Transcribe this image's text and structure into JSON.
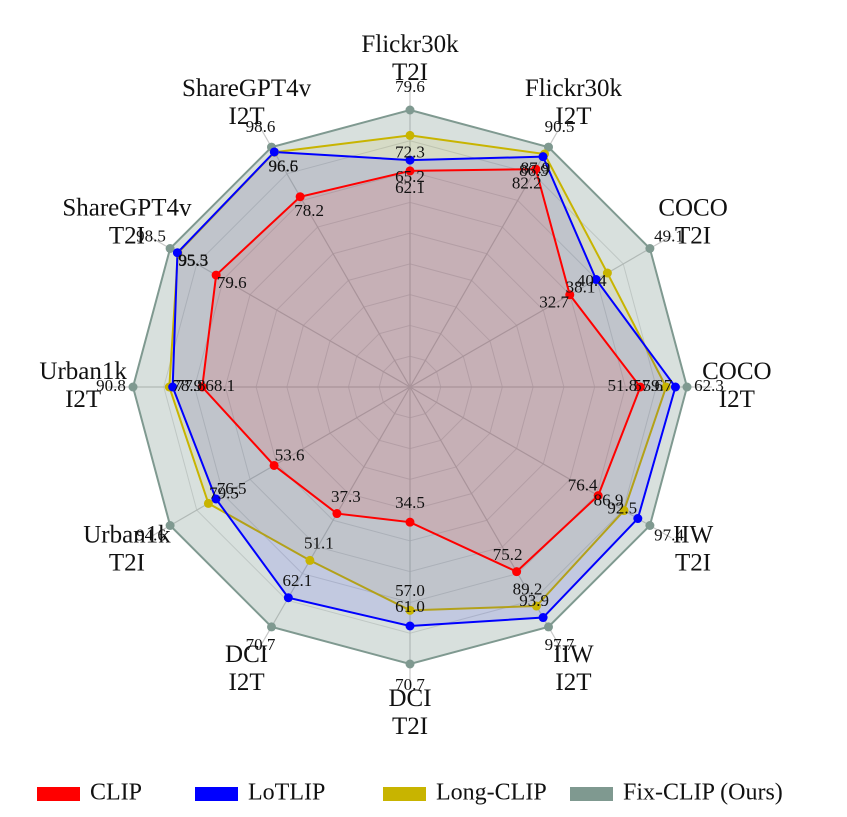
{
  "chart_data": {
    "type": "radar",
    "axes": [
      {
        "lines": [
          "Flickr30k",
          "T2I"
        ]
      },
      {
        "lines": [
          "Flickr30k",
          "I2T"
        ]
      },
      {
        "lines": [
          "COCO",
          "T2I"
        ]
      },
      {
        "lines": [
          "COCO",
          "I2T"
        ]
      },
      {
        "lines": [
          "IIW",
          "T2I"
        ]
      },
      {
        "lines": [
          "IIW",
          "I2T"
        ]
      },
      {
        "lines": [
          "DCI",
          "T2I"
        ]
      },
      {
        "lines": [
          "DCI",
          "I2T"
        ]
      },
      {
        "lines": [
          "Urban1k",
          "T2I"
        ]
      },
      {
        "lines": [
          "Urban1k",
          "I2T"
        ]
      },
      {
        "lines": [
          "ShareGPT4v",
          "T2I"
        ]
      },
      {
        "lines": [
          "ShareGPT4v",
          "I2T"
        ]
      }
    ],
    "series": [
      {
        "name": "CLIP",
        "color": "#ff0000",
        "values": [
          62.1,
          82.2,
          32.7,
          51.8,
          76.4,
          75.2,
          34.5,
          37.3,
          53.6,
          68.1,
          79.6,
          78.2
        ]
      },
      {
        "name": "LoTLIP",
        "color": "#0000ff",
        "values": [
          65.2,
          86.9,
          38.1,
          59.7,
          92.5,
          93.9,
          61.0,
          62.1,
          76.5,
          77.8,
          95.5,
          96.6
        ]
      },
      {
        "name": "Long-CLIP",
        "color": "#c8b400",
        "values": [
          72.3,
          87.9,
          40.4,
          57.6,
          86.9,
          89.2,
          57.0,
          51.1,
          79.5,
          78.9,
          95.3,
          96.5
        ]
      },
      {
        "name": "Fix-CLIP (Ours)",
        "color": "#7f9990",
        "values": [
          79.6,
          90.5,
          49.1,
          62.3,
          97.4,
          97.7,
          70.7,
          70.7,
          94.6,
          90.8,
          98.5,
          98.6
        ]
      }
    ],
    "axis_max_by_series": "Fix-CLIP (Ours)",
    "grid": true,
    "legend_position": "bottom"
  }
}
